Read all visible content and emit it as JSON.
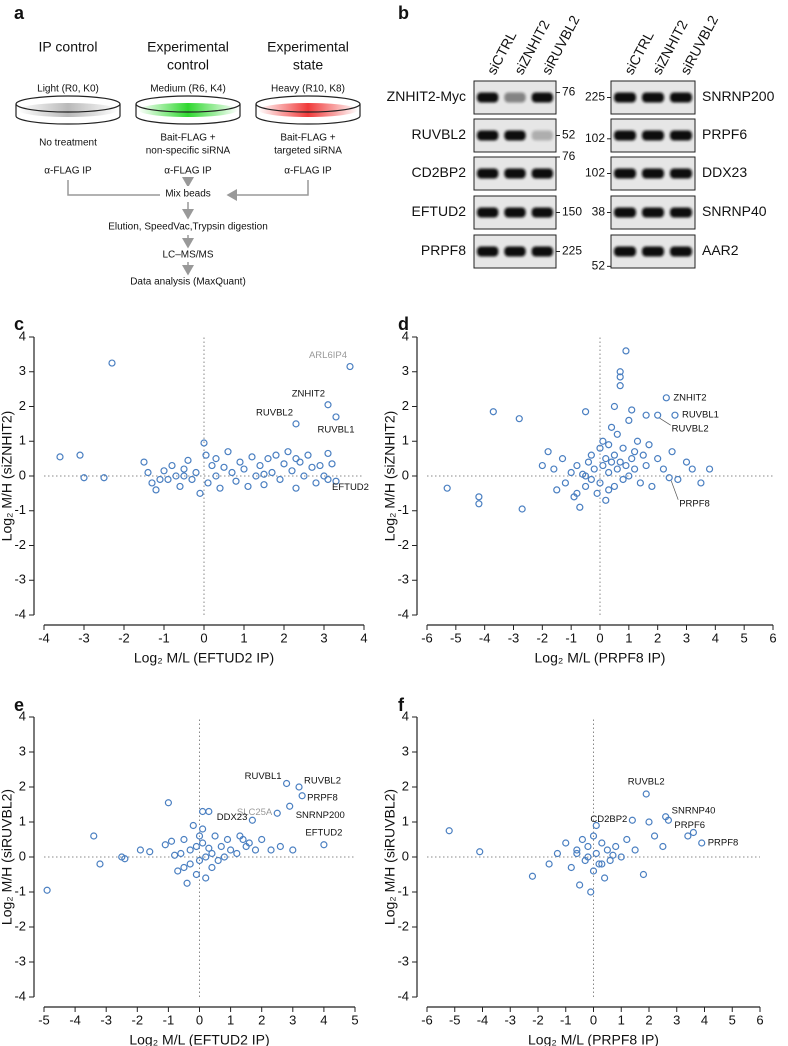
{
  "schematic": {
    "panel": "a",
    "columns": [
      {
        "title": [
          "IP control"
        ],
        "medium": "Light (R0, K0)",
        "treatment": [
          "No treatment"
        ],
        "ip": "α-FLAG IP",
        "color": "#b9b9b9"
      },
      {
        "title": [
          "Experimental",
          "control"
        ],
        "medium": "Medium (R6, K4)",
        "treatment": [
          "Bait-FLAG +",
          "non-specific siRNA"
        ],
        "ip": "α-FLAG IP",
        "color": "#2fd82f"
      },
      {
        "title": [
          "Experimental",
          "state"
        ],
        "medium": "Heavy (R10, K8)",
        "treatment": [
          "Bait-FLAG +",
          "targeted siRNA"
        ],
        "ip": "α-FLAG IP",
        "color": "#f03a3a"
      }
    ],
    "steps": [
      "Mix beads",
      "Elution, SpeedVac,Trypsin digestion",
      "LC–MS/MS",
      "Data analysis (MaxQuant)"
    ]
  },
  "blots": {
    "panel": "b",
    "lanes": [
      "siCTRL",
      "siZNHIT2",
      "siRUVBL2"
    ],
    "groups": [
      {
        "rows": [
          {
            "protein": "ZNHIT2-Myc",
            "marker": 76
          },
          {
            "protein": "RUVBL2",
            "marker": 52
          },
          {
            "protein": "CD2BP2",
            "marker": 76
          },
          {
            "protein": "EFTUD2",
            "marker": 150
          },
          {
            "protein": "PRPF8",
            "marker": 225
          }
        ]
      },
      {
        "rows": [
          {
            "protein": "SNRNP200",
            "marker": 225
          },
          {
            "protein": "PRPF6",
            "marker": 102
          },
          {
            "protein": "DDX23",
            "marker": 102
          },
          {
            "protein": "SNRNP40",
            "marker": 38
          },
          {
            "protein": "AAR2",
            "marker": 52
          }
        ]
      }
    ]
  },
  "chart_data": [
    {
      "type": "scatter",
      "panel": "c",
      "xlabel": "Log₂ M/L (EFTUD2 IP)",
      "ylabel": "Log₂ M/H (siZNHIT2)",
      "color": "#4a7fc1",
      "zero_lines": true,
      "xlim": [
        -4,
        4
      ],
      "xticks": [
        -4,
        -3,
        -2,
        -1,
        0,
        1,
        2,
        3,
        4
      ],
      "ylim": [
        -4,
        4
      ],
      "yticks": [
        -4,
        -3,
        -2,
        -1,
        0,
        1,
        2,
        3,
        4
      ],
      "x": [
        -3.6,
        -3.1,
        -3.0,
        -2.3,
        -2.5,
        -1.5,
        -1.4,
        -1.3,
        -1.2,
        -1.0,
        -0.9,
        -0.8,
        -0.7,
        -0.6,
        -0.5,
        -0.4,
        -0.3,
        -0.2,
        -0.1,
        0.0,
        0.05,
        0.1,
        0.2,
        0.3,
        0.4,
        0.5,
        0.6,
        0.7,
        0.8,
        0.9,
        1.0,
        1.1,
        1.2,
        1.3,
        1.4,
        1.5,
        1.6,
        1.7,
        1.8,
        1.9,
        2.0,
        2.1,
        2.2,
        2.3,
        2.4,
        2.5,
        2.6,
        2.7,
        2.8,
        2.9,
        3.0,
        3.1,
        3.2,
        3.3,
        -0.5,
        0.3,
        -1.1,
        1.5,
        2.3
      ],
      "values": [
        0.55,
        0.6,
        -0.05,
        3.25,
        -0.05,
        0.4,
        0.1,
        -0.2,
        -0.4,
        0.15,
        -0.1,
        0.3,
        0.0,
        -0.3,
        0.2,
        0.45,
        -0.1,
        0.1,
        -0.5,
        0.95,
        0.6,
        -0.2,
        0.3,
        0.0,
        -0.35,
        0.25,
        0.7,
        0.1,
        -0.15,
        0.4,
        0.2,
        -0.3,
        0.55,
        0.0,
        0.3,
        -0.25,
        0.5,
        0.1,
        0.6,
        -0.1,
        0.35,
        0.7,
        0.15,
        -0.35,
        0.4,
        0.0,
        0.6,
        0.25,
        -0.2,
        0.3,
        0.0,
        0.65,
        0.35,
        -0.15,
        0.0,
        0.5,
        -0.1,
        0.05,
        0.5
      ],
      "annotations": [
        {
          "text": "ARL6IP4",
          "x": 3.65,
          "y": 3.15,
          "color": "#999999"
        },
        {
          "text": "ZNHIT2",
          "x": 3.1,
          "y": 2.05
        },
        {
          "text": "RUVBL2",
          "x": 2.3,
          "y": 1.5
        },
        {
          "text": "RUVBL1",
          "x": 3.3,
          "y": 1.7
        },
        {
          "text": "EFTUD2",
          "x": 3.1,
          "y": -0.1
        }
      ]
    },
    {
      "type": "scatter",
      "panel": "d",
      "xlabel": "Log₂ M/L (PRPF8 IP)",
      "ylabel": "Log₂ M/H (siZNHIT2)",
      "color": "#4a7fc1",
      "zero_lines": true,
      "xlim": [
        -6,
        6
      ],
      "xticks": [
        -6,
        -5,
        -4,
        -3,
        -2,
        -1,
        0,
        1,
        2,
        3,
        4,
        5,
        6
      ],
      "ylim": [
        -4,
        4
      ],
      "yticks": [
        -4,
        -3,
        -2,
        -1,
        0,
        1,
        2,
        3,
        4
      ],
      "x": [
        -5.3,
        -4.2,
        -4.2,
        -3.7,
        -2.8,
        -2.7,
        -2.0,
        -1.8,
        -1.6,
        -1.5,
        -1.3,
        -1.2,
        -1.0,
        -0.9,
        -0.8,
        -0.7,
        -0.6,
        -0.5,
        -0.5,
        -0.4,
        -0.3,
        -0.3,
        -0.2,
        -0.1,
        0.0,
        0.0,
        0.1,
        0.1,
        0.2,
        0.2,
        0.3,
        0.3,
        0.4,
        0.4,
        0.5,
        0.5,
        0.5,
        0.6,
        0.6,
        0.7,
        0.7,
        0.7,
        0.7,
        0.8,
        0.8,
        0.9,
        0.9,
        1.0,
        1.0,
        1.1,
        1.1,
        1.2,
        1.3,
        1.4,
        1.5,
        1.6,
        1.7,
        1.8,
        2.0,
        2.2,
        2.5,
        2.7,
        3.0,
        3.2,
        3.5,
        3.8,
        -0.5,
        1.2,
        0.3,
        -0.8,
        1.6
      ],
      "values": [
        -0.35,
        -0.6,
        -0.8,
        1.85,
        1.65,
        -0.95,
        0.3,
        0.7,
        0.2,
        -0.4,
        0.5,
        -0.2,
        0.1,
        -0.6,
        0.3,
        -0.9,
        0.05,
        -0.3,
        1.85,
        0.4,
        -0.1,
        0.6,
        0.2,
        -0.5,
        0.8,
        -0.2,
        0.3,
        1.0,
        0.5,
        -0.7,
        0.1,
        0.9,
        0.4,
        1.4,
        2.0,
        0.6,
        -0.3,
        0.2,
        1.2,
        3.0,
        2.85,
        2.6,
        0.4,
        -0.1,
        0.8,
        3.6,
        0.3,
        1.6,
        0.0,
        1.9,
        0.5,
        0.2,
        1.0,
        -0.2,
        0.6,
        0.3,
        0.9,
        -0.3,
        0.5,
        0.2,
        0.7,
        -0.1,
        0.4,
        0.2,
        -0.2,
        0.2,
        0.0,
        0.7,
        -0.4,
        -0.5,
        1.75
      ],
      "annotations": [
        {
          "text": "ZNHIT2",
          "x": 2.3,
          "y": 2.25
        },
        {
          "text": "RUVBL1",
          "x": 2.6,
          "y": 1.75
        },
        {
          "text": "RUVBL2",
          "x": 2.0,
          "y": 1.75
        },
        {
          "text": "PRPF8",
          "x": 2.4,
          "y": -0.05
        }
      ]
    },
    {
      "type": "scatter",
      "panel": "e",
      "xlabel": "Log₂ M/L (EFTUD2 IP)",
      "ylabel": "Log₂ M/H (siRUVBL2)",
      "color": "#4a7fc1",
      "zero_lines": true,
      "xlim": [
        -5,
        5
      ],
      "xticks": [
        -5,
        -4,
        -3,
        -2,
        -1,
        0,
        1,
        2,
        3,
        4,
        5
      ],
      "ylim": [
        -4,
        4
      ],
      "yticks": [
        -4,
        -3,
        -2,
        -1,
        0,
        1,
        2,
        3,
        4
      ],
      "x": [
        -4.9,
        -3.4,
        -3.2,
        -2.5,
        -2.4,
        -1.9,
        -1.6,
        -1.1,
        -1.0,
        -0.9,
        -0.7,
        -0.6,
        -0.5,
        -0.4,
        -0.3,
        -0.3,
        -0.2,
        -0.1,
        -0.1,
        0.0,
        0.0,
        0.1,
        0.1,
        0.2,
        0.2,
        0.3,
        0.3,
        0.4,
        0.5,
        0.6,
        0.7,
        0.8,
        0.9,
        1.0,
        1.2,
        1.4,
        1.5,
        1.6,
        1.8,
        2.0,
        2.3,
        2.6,
        3.0,
        -0.5,
        0.1,
        0.4,
        -0.8,
        1.3
      ],
      "values": [
        -0.95,
        0.6,
        -0.2,
        0.0,
        -0.05,
        0.2,
        0.15,
        0.35,
        1.55,
        0.45,
        -0.4,
        0.1,
        0.5,
        -0.75,
        0.2,
        -0.2,
        0.9,
        0.3,
        -0.5,
        0.6,
        -0.1,
        1.3,
        0.4,
        0.0,
        -0.6,
        0.25,
        1.3,
        0.1,
        0.6,
        -0.1,
        0.3,
        0.0,
        0.5,
        0.2,
        0.1,
        0.5,
        0.3,
        0.4,
        0.2,
        0.5,
        0.2,
        0.3,
        0.2,
        -0.3,
        0.8,
        -0.3,
        0.05,
        0.6
      ],
      "annotations": [
        {
          "text": "RUVBL1",
          "x": 2.8,
          "y": 2.1
        },
        {
          "text": "RUVBL2",
          "x": 3.2,
          "y": 2.0
        },
        {
          "text": "PRPF8",
          "x": 3.3,
          "y": 1.75
        },
        {
          "text": "SLC25A",
          "x": 2.5,
          "y": 1.25,
          "color": "#999999"
        },
        {
          "text": "SNRNP200",
          "x": 2.9,
          "y": 1.45
        },
        {
          "text": "DDX23",
          "x": 1.7,
          "y": 1.05
        },
        {
          "text": "EFTUD2",
          "x": 4.0,
          "y": 0.35
        }
      ]
    },
    {
      "type": "scatter",
      "panel": "f",
      "xlabel": "Log₂ M/L (PRPF8 IP)",
      "ylabel": "Log₂ M/H (siRUVBL2)",
      "color": "#4a7fc1",
      "zero_lines": true,
      "xlim": [
        -6,
        6
      ],
      "xticks": [
        -6,
        -5,
        -4,
        -3,
        -2,
        -1,
        0,
        1,
        2,
        3,
        4,
        5,
        6
      ],
      "ylim": [
        -4,
        4
      ],
      "yticks": [
        -4,
        -3,
        -2,
        -1,
        0,
        1,
        2,
        3,
        4
      ],
      "x": [
        -5.2,
        -4.1,
        -2.2,
        -1.6,
        -1.3,
        -1.0,
        -0.8,
        -0.6,
        -0.5,
        -0.4,
        -0.3,
        -0.2,
        -0.1,
        0.0,
        0.0,
        0.1,
        0.1,
        0.2,
        0.3,
        0.4,
        0.5,
        0.6,
        0.8,
        1.0,
        1.2,
        1.5,
        1.8,
        2.2,
        2.5,
        3.4,
        3.6,
        -0.2,
        0.3,
        -0.6,
        0.7,
        2.0
      ],
      "values": [
        0.75,
        0.15,
        -0.55,
        -0.2,
        0.1,
        0.4,
        -0.3,
        0.2,
        -0.8,
        0.5,
        -0.1,
        0.3,
        -1.0,
        0.6,
        -0.4,
        0.1,
        0.9,
        -0.2,
        0.4,
        -0.6,
        0.2,
        -0.1,
        0.3,
        0.0,
        0.5,
        0.2,
        -0.5,
        0.6,
        0.3,
        0.6,
        0.7,
        0.0,
        -0.2,
        0.1,
        0.05,
        1.0
      ],
      "annotations": [
        {
          "text": "RUVBL2",
          "x": 1.9,
          "y": 1.8
        },
        {
          "text": "SNRNP40",
          "x": 2.6,
          "y": 1.15
        },
        {
          "text": "PRPF6",
          "x": 2.7,
          "y": 1.05
        },
        {
          "text": "CD2BP2",
          "x": 1.4,
          "y": 1.05
        },
        {
          "text": "PRPF8",
          "x": 3.9,
          "y": 0.4
        }
      ]
    }
  ]
}
